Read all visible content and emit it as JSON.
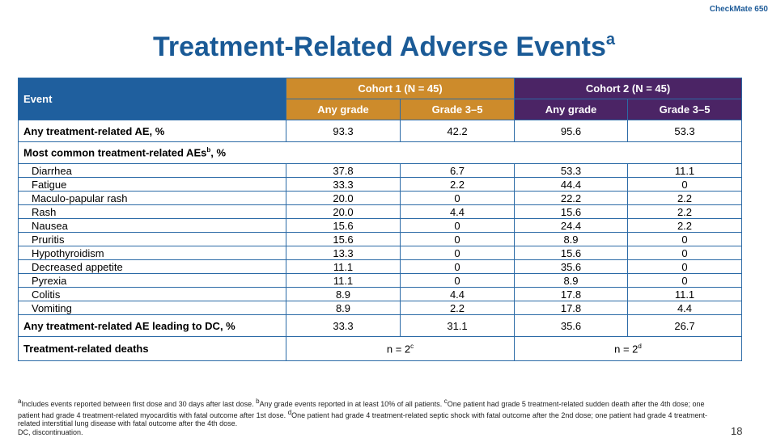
{
  "top_tag": "CheckMate 650",
  "title": "Treatment-Related Adverse Events",
  "title_sup": "a",
  "table": {
    "event_header": "Event",
    "cohort1_header": "Cohort 1 (N = 45)",
    "cohort2_header": "Cohort 2 (N = 45)",
    "any_grade": "Any grade",
    "grade_3_5": "Grade 3–5",
    "any_trae": {
      "label": "Any treatment-related AE, %",
      "values": [
        "93.3",
        "42.2",
        "95.6",
        "53.3"
      ]
    },
    "most_common": {
      "label": "Most common treatment-related AEs",
      "sup": "b",
      "suffix": ", %"
    },
    "rows": [
      {
        "label": "Diarrhea",
        "values": [
          "37.8",
          "6.7",
          "53.3",
          "11.1"
        ]
      },
      {
        "label": "Fatigue",
        "values": [
          "33.3",
          "2.2",
          "44.4",
          "0"
        ]
      },
      {
        "label": "Maculo-papular rash",
        "values": [
          "20.0",
          "0",
          "22.2",
          "2.2"
        ]
      },
      {
        "label": "Rash",
        "values": [
          "20.0",
          "4.4",
          "15.6",
          "2.2"
        ]
      },
      {
        "label": "Nausea",
        "values": [
          "15.6",
          "0",
          "24.4",
          "2.2"
        ]
      },
      {
        "label": "Pruritis",
        "values": [
          "15.6",
          "0",
          "8.9",
          "0"
        ]
      },
      {
        "label": "Hypothyroidism",
        "values": [
          "13.3",
          "0",
          "15.6",
          "0"
        ]
      },
      {
        "label": "Decreased appetite",
        "values": [
          "11.1",
          "0",
          "35.6",
          "0"
        ]
      },
      {
        "label": "Pyrexia",
        "values": [
          "11.1",
          "0",
          "8.9",
          "0"
        ]
      },
      {
        "label": "Colitis",
        "values": [
          "8.9",
          "4.4",
          "17.8",
          "11.1"
        ]
      },
      {
        "label": "Vomiting",
        "values": [
          "8.9",
          "2.2",
          "17.8",
          "4.4"
        ]
      }
    ],
    "dc": {
      "label": "Any treatment-related AE leading to DC, %",
      "values": [
        "33.3",
        "31.1",
        "35.6",
        "26.7"
      ]
    },
    "deaths": {
      "label": "Treatment-related deaths",
      "cohort1": "n = 2",
      "cohort1_sup": "c",
      "cohort2": "n = 2",
      "cohort2_sup": "d"
    }
  },
  "footnotes": {
    "a_mark": "a",
    "a_text": "Includes events reported between first dose and 30 days after last dose.",
    "b_mark": "b",
    "b_text": "Any grade events reported in at least 10% of all patients.",
    "c_mark": "c",
    "c_text": "One patient had grade 5 treatment-related sudden death after the 4th dose; one patient had grade 4 treatment-related myocarditis with fatal outcome after 1st dose.",
    "d_mark": "d",
    "d_text": "One patient had grade 4 treatment-related septic shock with fatal outcome after the 2nd dose; one patient had grade 4 treatment-related interstitial lung disease with fatal outcome after the 4th dose.",
    "dc_line": "DC, discontinuation."
  },
  "page_number": "18"
}
